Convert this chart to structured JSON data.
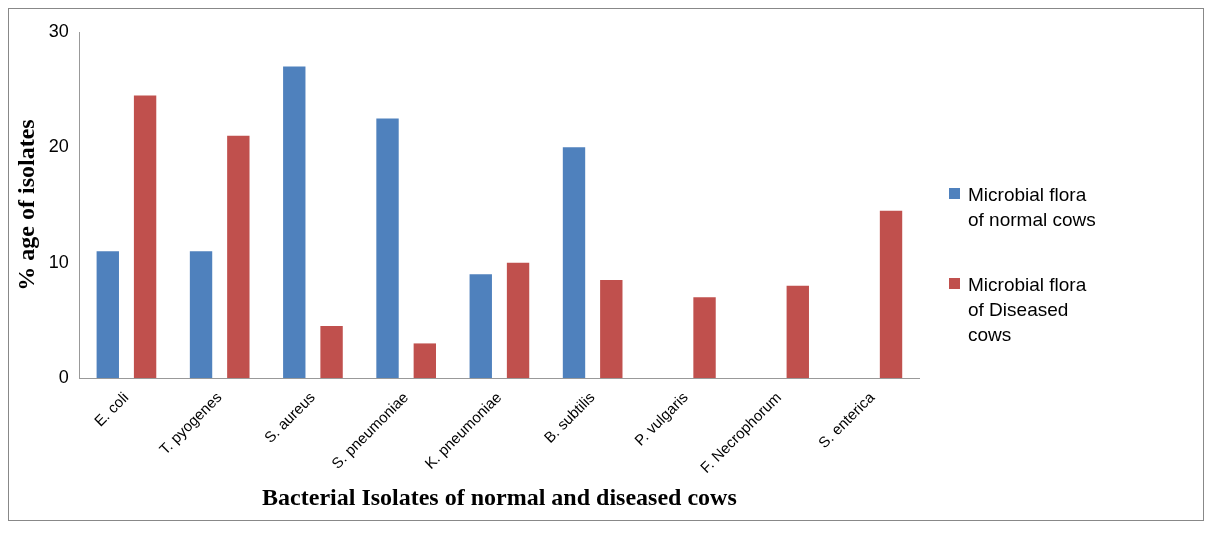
{
  "chart_data": {
    "type": "bar",
    "xlabel": "Bacterial Isolates of normal and diseased cows",
    "ylabel": "% age of isolates",
    "categories": [
      "E. coli",
      "T. pyogenes",
      "S. aureus",
      "S. pneumoniae",
      "K. pneumoniae",
      "B. subtilis",
      "P. vulgaris",
      "F. Necrophorum",
      "S. enterica"
    ],
    "series": [
      {
        "name": "Microbial flora of normal cows",
        "color": "#4f81bd",
        "values": [
          11,
          11,
          27,
          22.5,
          9,
          20,
          null,
          null,
          null
        ]
      },
      {
        "name": "Microbial flora of Diseased cows",
        "color": "#c0504d",
        "values": [
          24.5,
          21,
          4.5,
          3,
          10,
          8.5,
          7,
          8,
          14.5
        ]
      }
    ],
    "ylim": [
      0,
      30
    ],
    "yticks": [
      0,
      10,
      20,
      30
    ],
    "grid": false,
    "legend": "right"
  }
}
